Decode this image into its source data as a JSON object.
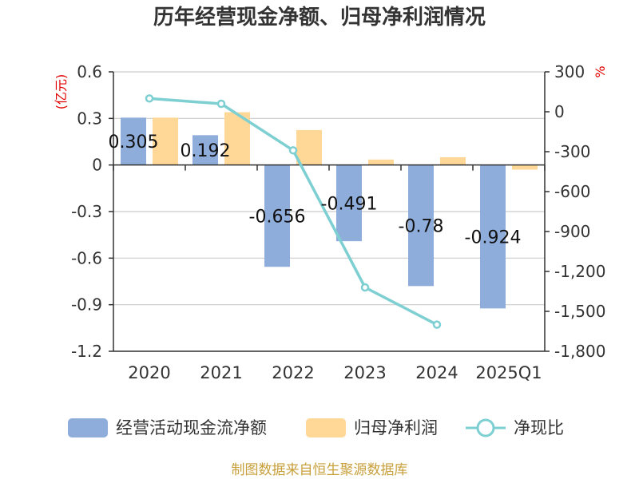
{
  "chart_data": {
    "type": "bar",
    "title": "历年经营现金净额、归母净利润情况",
    "categories": [
      "2020",
      "2021",
      "2022",
      "2023",
      "2024",
      "2025Q1"
    ],
    "series": [
      {
        "name": "经营活动现金流净额",
        "type": "bar",
        "axis": "left",
        "color": "#8EADDB",
        "values": [
          0.305,
          0.192,
          -0.656,
          -0.491,
          -0.78,
          -0.924
        ],
        "labels": [
          "0.305",
          "0.192",
          "-0.656",
          "-0.491",
          "-0.78",
          "-0.924"
        ]
      },
      {
        "name": "归母净利润",
        "type": "bar",
        "axis": "left",
        "color": "#FFD796",
        "values": [
          0.305,
          0.34,
          0.225,
          0.035,
          0.05,
          -0.03
        ]
      },
      {
        "name": "净现比",
        "type": "line",
        "axis": "right",
        "color": "#7ECFD2",
        "values": [
          100,
          60,
          -290,
          -1320,
          -1600,
          null
        ]
      }
    ],
    "left_axis": {
      "unit": "(亿元)",
      "ylim": [
        -1.2,
        0.6
      ],
      "ticks": [
        0.6,
        0.3,
        0,
        -0.3,
        -0.6,
        -0.9,
        -1.2
      ],
      "tick_labels": [
        "0.6",
        "0.3",
        "0",
        "-0.3",
        "-0.6",
        "-0.9",
        "-1.2"
      ]
    },
    "right_axis": {
      "unit": "%",
      "ylim": [
        -1800,
        300
      ],
      "ticks": [
        300,
        0,
        -300,
        -600,
        -900,
        -1200,
        -1500,
        -1800
      ],
      "tick_labels": [
        "300",
        "0",
        "-300",
        "-600",
        "-900",
        "-1,200",
        "-1,500",
        "-1,800"
      ]
    },
    "grid": true,
    "legend": "bottom"
  },
  "source": "制图数据来自恒生聚源数据库",
  "colors": {
    "axis": "#333333",
    "grid": "#cccccc",
    "unit": "#e00000",
    "source": "#c8a03c"
  }
}
